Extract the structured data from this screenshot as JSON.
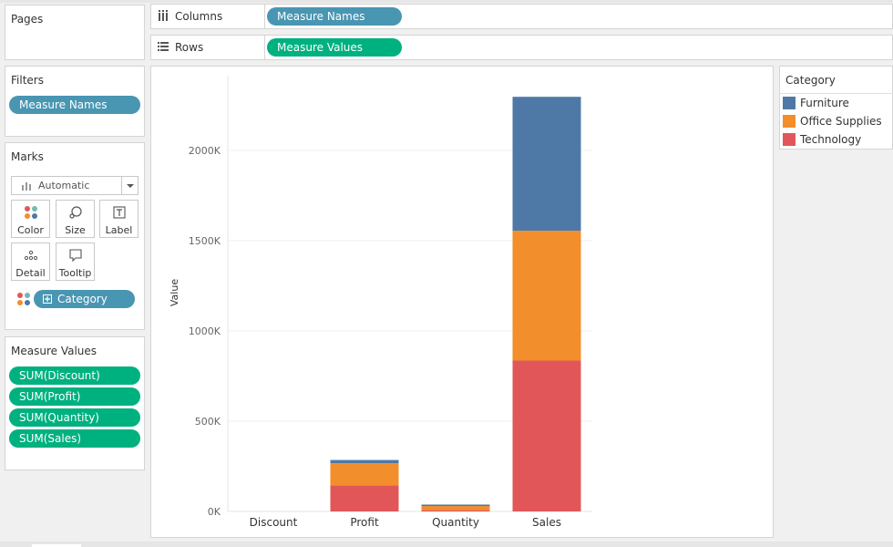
{
  "pages": {
    "title": "Pages"
  },
  "filters": {
    "title": "Filters",
    "pills": [
      "Measure Names"
    ]
  },
  "marks": {
    "title": "Marks",
    "mark_type": "Automatic",
    "buttons": [
      {
        "label": "Color",
        "icon": "color-dots-icon"
      },
      {
        "label": "Size",
        "icon": "size-icon"
      },
      {
        "label": "Label",
        "icon": "text-label-icon"
      },
      {
        "label": "Detail",
        "icon": "detail-dots-icon"
      },
      {
        "label": "Tooltip",
        "icon": "tooltip-icon"
      }
    ],
    "color_field": "Category"
  },
  "measure_values": {
    "title": "Measure Values",
    "pills": [
      "SUM(Discount)",
      "SUM(Profit)",
      "SUM(Quantity)",
      "SUM(Sales)"
    ]
  },
  "columns_shelf": {
    "label": "Columns",
    "pill": "Measure Names"
  },
  "rows_shelf": {
    "label": "Rows",
    "pill": "Measure Values"
  },
  "legend": {
    "title": "Category",
    "items": [
      {
        "label": "Furniture",
        "color": "#4e79a7"
      },
      {
        "label": "Office Supplies",
        "color": "#f28e2b"
      },
      {
        "label": "Technology",
        "color": "#e15759"
      }
    ]
  },
  "colors": {
    "filter_pill": "#4996b2",
    "measure_pill": "#00b180",
    "furniture": "#4e79a7",
    "office_supplies": "#f28e2b",
    "technology": "#e15759"
  },
  "chart_data": {
    "type": "bar",
    "stacked": true,
    "categories": [
      "Discount",
      "Profit",
      "Quantity",
      "Sales"
    ],
    "series": [
      {
        "name": "Technology",
        "color": "#e15759",
        "values": [
          0,
          145000,
          7000,
          836000
        ]
      },
      {
        "name": "Office Supplies",
        "color": "#f28e2b",
        "values": [
          0,
          122000,
          23000,
          719000
        ]
      },
      {
        "name": "Furniture",
        "color": "#4e79a7",
        "values": [
          0,
          18000,
          8000,
          742000
        ]
      }
    ],
    "ylabel": "Value",
    "xlabel": "",
    "yticks": [
      0,
      500000,
      1000000,
      1500000,
      2000000
    ],
    "ytick_labels": [
      "0K",
      "500K",
      "1000K",
      "1500K",
      "2000K"
    ],
    "ylim": [
      0,
      2400000
    ],
    "grid": true
  }
}
